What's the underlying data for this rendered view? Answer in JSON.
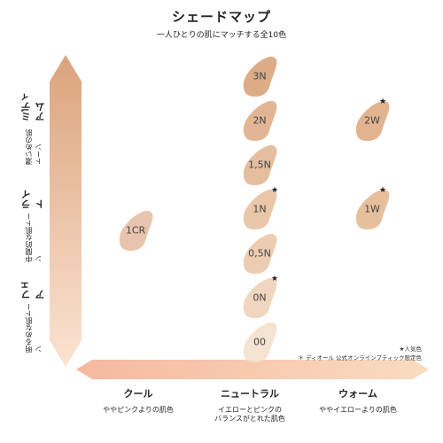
{
  "header": {
    "title": "シェードマップ",
    "subtitle": "一人ひとりの肌にマッチする全10色"
  },
  "vertical_axis": {
    "medium": {
      "sub": "濃いめの肌トーン",
      "main": "ミディアム"
    },
    "light": {
      "sub": "中間的な肌トーン",
      "main": "ライト"
    },
    "fair": {
      "sub": "明るめな肌トーン",
      "main": "フェア"
    }
  },
  "horizontal_axis": {
    "cool": {
      "main": "クール",
      "sub": "ややピンクよりの肌色"
    },
    "neutral": {
      "main": "ニュートラル",
      "sub": "イエローとピンクの\nバランスがとれた肌色"
    },
    "warm": {
      "main": "ウォーム",
      "sub": "ややイエローよりの肌色"
    }
  },
  "shades": [
    {
      "id": "3N",
      "label": "3N",
      "color": "#d9a57d",
      "popular": false
    },
    {
      "id": "2N",
      "label": "2N",
      "color": "#dfb08b",
      "popular": false
    },
    {
      "id": "15N",
      "label": "1,5N",
      "color": "#e3b996",
      "popular": false
    },
    {
      "id": "1N",
      "label": "1N",
      "color": "#e8c2a2",
      "popular": true
    },
    {
      "id": "05N",
      "label": "0,5N",
      "color": "#ebc9ab",
      "popular": false
    },
    {
      "id": "0N",
      "label": "0N",
      "color": "#efd3b8",
      "popular": true
    },
    {
      "id": "00",
      "label": "00",
      "color": "#f4e1cd",
      "popular": false
    },
    {
      "id": "1CR",
      "label": "1CR",
      "color": "#e6bfa6",
      "popular": false
    },
    {
      "id": "2W",
      "label": "2W",
      "color": "#deae86",
      "popular": true
    },
    {
      "id": "1W",
      "label": "1W",
      "color": "#e4bb95",
      "popular": true
    }
  ],
  "star_glyph": "★",
  "legend": {
    "popular": "★人気色",
    "online_only": "＊ ディオール 公式オンラインブティック限定色"
  },
  "colors": {
    "arrow_top": "#dba37c",
    "arrow_bottom": "#fbe3d2",
    "harrow_left": "#f5b8a0",
    "harrow_right": "#f9dcc0"
  }
}
